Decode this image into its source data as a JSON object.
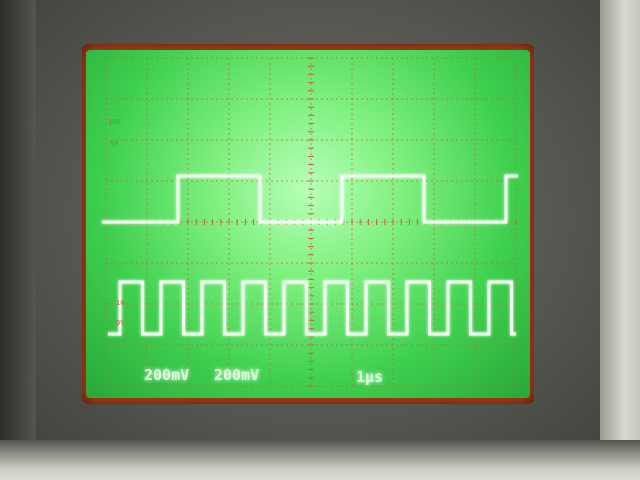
{
  "colors": {
    "phosphor": "#f2fff2",
    "graticule": "#c8603a",
    "glow": "#e8ffe8"
  },
  "graticule_labels": {
    "pct100": "100",
    "pct90": "90",
    "pct10": "10",
    "pct0": "0%"
  },
  "readouts": {
    "ch1_scale": "200mV",
    "ch2_scale": "200mV",
    "timebase": "1μs"
  },
  "waveforms": {
    "ch1_period_div": 4,
    "ch2_period_div": 1
  }
}
